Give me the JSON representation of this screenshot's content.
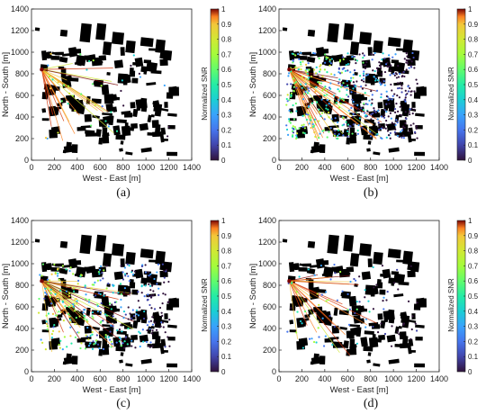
{
  "chart_data": [
    {
      "panel_label": "(a)",
      "type": "scatter",
      "xlabel": "West - East [m]",
      "ylabel": "North - South [m]",
      "xlim": [
        0,
        1400
      ],
      "ylim": [
        0,
        1400
      ],
      "xticks": [
        "0",
        "200",
        "400",
        "600",
        "800",
        "1000",
        "1200",
        "1400"
      ],
      "yticks": [
        "0",
        "200",
        "400",
        "600",
        "800",
        "1000",
        "1200",
        "1400"
      ],
      "colorbar_label": "Normalized SNR",
      "colorbar_ticks": [
        "0",
        "0.1",
        "0.2",
        "0.3",
        "0.4",
        "0.5",
        "0.6",
        "0.7",
        "0.8",
        "0.9",
        "1"
      ],
      "colorbar_range": [
        0,
        1
      ],
      "colormap": "turbo"
    },
    {
      "panel_label": "(b)",
      "type": "scatter",
      "xlabel": "West - East [m]",
      "ylabel": "North - South [m]",
      "xlim": [
        0,
        1400
      ],
      "ylim": [
        0,
        1400
      ],
      "xticks": [
        "0",
        "200",
        "400",
        "600",
        "800",
        "1000",
        "1200",
        "1400"
      ],
      "yticks": [
        "0",
        "200",
        "400",
        "600",
        "800",
        "1000",
        "1200",
        "1400"
      ],
      "colorbar_label": "Normalized SNR",
      "colorbar_ticks": [
        "0",
        "0.1",
        "0.2",
        "0.3",
        "0.4",
        "0.5",
        "0.6",
        "0.7",
        "0.8",
        "0.9",
        "1"
      ],
      "colorbar_range": [
        0,
        1
      ],
      "colormap": "turbo"
    },
    {
      "panel_label": "(c)",
      "type": "scatter",
      "xlabel": "West - East [m]",
      "ylabel": "North - South [m]",
      "xlim": [
        0,
        1400
      ],
      "ylim": [
        0,
        1400
      ],
      "xticks": [
        "0",
        "200",
        "400",
        "600",
        "800",
        "1000",
        "1200",
        "1400"
      ],
      "yticks": [
        "0",
        "200",
        "400",
        "600",
        "800",
        "1000",
        "1200",
        "1400"
      ],
      "colorbar_label": "Normalized SNR",
      "colorbar_ticks": [
        "0",
        "0.1",
        "0.2",
        "0.3",
        "0.4",
        "0.5",
        "0.6",
        "0.7",
        "0.8",
        "0.9",
        "1"
      ],
      "colorbar_range": [
        0,
        1
      ],
      "colormap": "turbo"
    },
    {
      "panel_label": "(d)",
      "type": "scatter",
      "xlabel": "West - East [m]",
      "ylabel": "North - South [m]",
      "xlim": [
        0,
        1400
      ],
      "ylim": [
        0,
        1400
      ],
      "xticks": [
        "0",
        "200",
        "400",
        "600",
        "800",
        "1000",
        "1200",
        "1400"
      ],
      "yticks": [
        "0",
        "200",
        "400",
        "600",
        "800",
        "1000",
        "1200",
        "1400"
      ],
      "colorbar_label": "Normalized SNR",
      "colorbar_ticks": [
        "0",
        "0.1",
        "0.2",
        "0.3",
        "0.4",
        "0.5",
        "0.6",
        "0.7",
        "0.8",
        "0.9",
        "1"
      ],
      "colorbar_range": [
        0,
        1
      ],
      "colormap": "turbo"
    }
  ]
}
